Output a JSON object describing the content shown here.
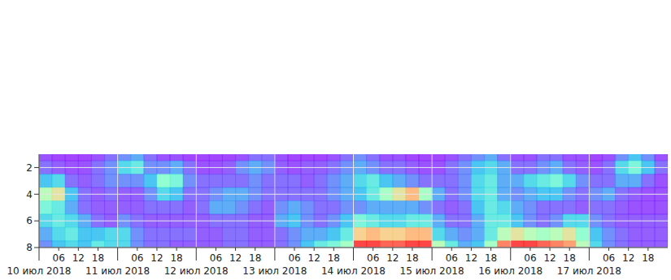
{
  "chart_data": {
    "type": "heatmap",
    "color": "rainbow",
    "grid": true,
    "xlim": [
      0,
      192
    ],
    "ylim": [
      8,
      1
    ],
    "xticks": [
      {
        "value": 0,
        "label": "10 июл 2018"
      },
      {
        "value": 24,
        "label": "11 июл 2018"
      },
      {
        "value": 48,
        "label": "12 июл 2018"
      },
      {
        "value": 72,
        "label": "13 июл 2018"
      },
      {
        "value": 96,
        "label": "14 июл 2018"
      },
      {
        "value": 120,
        "label": "15 июл 2018"
      },
      {
        "value": 144,
        "label": "16 июл 2018"
      },
      {
        "value": 168,
        "label": "17 июл 2018"
      }
    ],
    "xticks_minor": [
      {
        "value": 6,
        "label": "06"
      },
      {
        "value": 12,
        "label": "12"
      },
      {
        "value": 18,
        "label": "18"
      },
      {
        "value": 30,
        "label": "06"
      },
      {
        "value": 36,
        "label": "12"
      },
      {
        "value": 42,
        "label": "18"
      },
      {
        "value": 54,
        "label": "06"
      },
      {
        "value": 60,
        "label": "12"
      },
      {
        "value": 66,
        "label": "18"
      },
      {
        "value": 78,
        "label": "06"
      },
      {
        "value": 84,
        "label": "12"
      },
      {
        "value": 90,
        "label": "18"
      },
      {
        "value": 102,
        "label": "06"
      },
      {
        "value": 108,
        "label": "12"
      },
      {
        "value": 114,
        "label": "18"
      },
      {
        "value": 126,
        "label": "06"
      },
      {
        "value": 132,
        "label": "12"
      },
      {
        "value": 138,
        "label": "18"
      },
      {
        "value": 150,
        "label": "06"
      },
      {
        "value": 156,
        "label": "12"
      },
      {
        "value": 162,
        "label": "18"
      },
      {
        "value": 174,
        "label": "06"
      },
      {
        "value": 180,
        "label": "12"
      },
      {
        "value": 186,
        "label": "18"
      }
    ],
    "yticks": [
      2,
      4,
      6,
      8
    ],
    "x": [
      2,
      6,
      10,
      14,
      18,
      22,
      26,
      30,
      34,
      38,
      42,
      46,
      50,
      54,
      58,
      62,
      66,
      70,
      74,
      78,
      82,
      86,
      90,
      94,
      98,
      102,
      106,
      110,
      114,
      118,
      122,
      126,
      130,
      134,
      138,
      142,
      146,
      150,
      154,
      158,
      162,
      166,
      170,
      174,
      178,
      182,
      186,
      190
    ],
    "y": [
      1,
      2,
      3,
      4,
      5,
      6,
      7,
      8
    ],
    "cells": [
      [
        10,
        8,
        8,
        8,
        10,
        15,
        20,
        25,
        15,
        10,
        10,
        8,
        8,
        8,
        8,
        10,
        15,
        15,
        10,
        8,
        8,
        8,
        10,
        15,
        20,
        15,
        10,
        10,
        8,
        8,
        8,
        10,
        15,
        20,
        25,
        15,
        10,
        10,
        15,
        15,
        10,
        10,
        8,
        10,
        20,
        30,
        20,
        10
      ],
      [
        15,
        12,
        10,
        10,
        15,
        20,
        35,
        40,
        20,
        20,
        25,
        15,
        10,
        10,
        12,
        20,
        25,
        20,
        12,
        10,
        12,
        12,
        15,
        20,
        25,
        20,
        15,
        15,
        12,
        10,
        10,
        15,
        20,
        30,
        35,
        25,
        15,
        15,
        20,
        25,
        15,
        12,
        10,
        15,
        35,
        45,
        30,
        15
      ],
      [
        30,
        35,
        15,
        12,
        15,
        20,
        20,
        20,
        30,
        50,
        45,
        20,
        15,
        15,
        15,
        15,
        20,
        15,
        15,
        15,
        12,
        15,
        20,
        25,
        35,
        40,
        30,
        25,
        20,
        15,
        15,
        15,
        20,
        35,
        40,
        25,
        25,
        35,
        40,
        45,
        35,
        20,
        15,
        15,
        25,
        25,
        15,
        10
      ],
      [
        60,
        70,
        30,
        15,
        12,
        15,
        12,
        12,
        20,
        35,
        30,
        15,
        15,
        20,
        25,
        25,
        20,
        15,
        15,
        15,
        15,
        15,
        20,
        25,
        30,
        40,
        55,
        70,
        80,
        55,
        25,
        15,
        20,
        35,
        40,
        25,
        20,
        25,
        30,
        30,
        20,
        15,
        20,
        25,
        15,
        12,
        10,
        10
      ],
      [
        45,
        40,
        25,
        15,
        12,
        12,
        12,
        12,
        15,
        15,
        15,
        12,
        15,
        25,
        25,
        20,
        15,
        12,
        20,
        25,
        20,
        15,
        15,
        20,
        20,
        25,
        25,
        25,
        25,
        20,
        15,
        12,
        15,
        30,
        40,
        35,
        25,
        20,
        15,
        15,
        15,
        12,
        15,
        15,
        12,
        10,
        10,
        10
      ],
      [
        35,
        40,
        35,
        25,
        15,
        12,
        20,
        15,
        12,
        12,
        12,
        12,
        12,
        15,
        15,
        15,
        12,
        12,
        25,
        30,
        20,
        15,
        20,
        30,
        45,
        40,
        35,
        35,
        40,
        40,
        25,
        15,
        15,
        25,
        40,
        40,
        30,
        20,
        15,
        20,
        35,
        35,
        20,
        15,
        12,
        12,
        12,
        12
      ],
      [
        25,
        35,
        40,
        30,
        30,
        35,
        35,
        20,
        15,
        15,
        15,
        15,
        12,
        12,
        15,
        15,
        12,
        12,
        15,
        20,
        25,
        25,
        30,
        40,
        75,
        80,
        75,
        75,
        80,
        80,
        35,
        25,
        20,
        25,
        40,
        60,
        70,
        60,
        55,
        60,
        70,
        50,
        30,
        20,
        15,
        12,
        12,
        12
      ],
      [
        20,
        30,
        35,
        30,
        40,
        35,
        35,
        20,
        15,
        15,
        12,
        12,
        12,
        12,
        15,
        15,
        12,
        12,
        15,
        20,
        30,
        40,
        45,
        55,
        100,
        100,
        95,
        95,
        100,
        100,
        60,
        40,
        25,
        30,
        55,
        90,
        100,
        100,
        95,
        90,
        85,
        60,
        35,
        20,
        15,
        12,
        12,
        12
      ]
    ]
  }
}
